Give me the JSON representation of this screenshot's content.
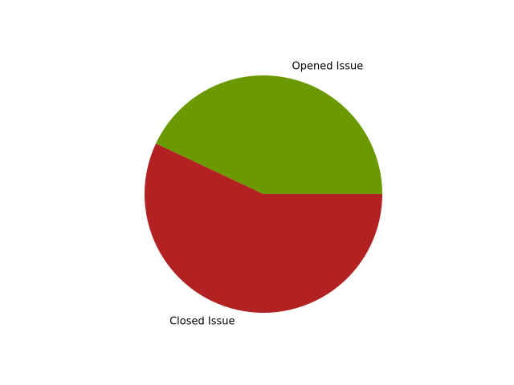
{
  "chart_data": {
    "type": "pie",
    "title": "",
    "slices": [
      {
        "label": "Opened Issue",
        "value": 43,
        "color": "#6a9a00"
      },
      {
        "label": "Closed Issue",
        "value": 57,
        "color": "#b22222"
      }
    ],
    "start_angle_deg": 0,
    "direction": "counterclockwise",
    "legend": "none"
  }
}
